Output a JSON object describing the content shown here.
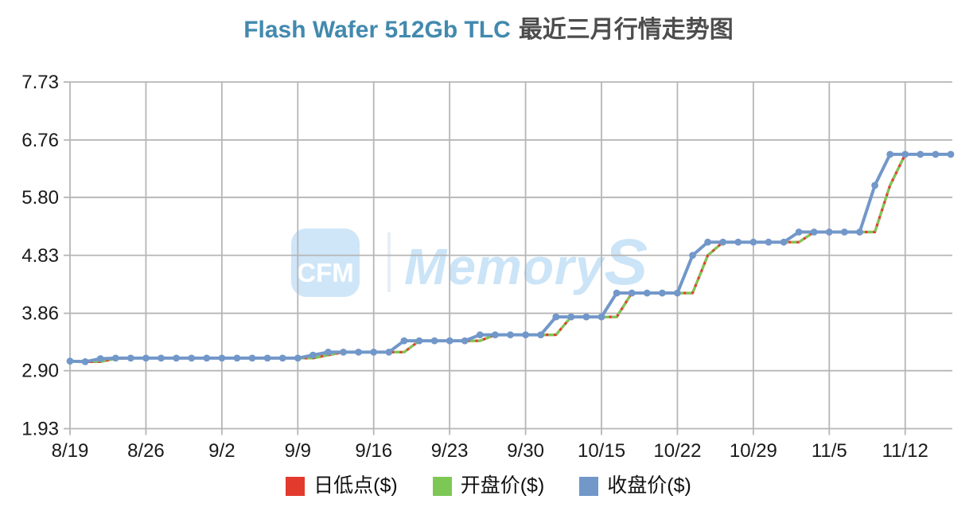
{
  "title": {
    "en": "Flash Wafer 512Gb TLC",
    "zh": "最近三月行情走势图"
  },
  "watermark": {
    "logo_text": "CFM",
    "brand_text": "MemoryS",
    "box_color": "#cfe6f8",
    "text_color": "#cbe4f7",
    "divider_color": "#e7eef5"
  },
  "colors": {
    "title_en": "#4289ae",
    "title_zh": "#4d4d4d",
    "grid": "#b6b6b6",
    "axis_text": "#1a1a1a",
    "low": "#e23b2e",
    "open": "#7dc855",
    "close": "#7297c9"
  },
  "chart_data": {
    "type": "line",
    "title": "Flash Wafer 512Gb TLC 最近三月行情走势图",
    "xlabel": "",
    "ylabel": "",
    "grid": true,
    "legend_position": "bottom",
    "y_ticks": [
      7.73,
      6.76,
      5.8,
      4.83,
      3.86,
      2.9,
      1.93
    ],
    "ylim": [
      1.93,
      7.73
    ],
    "x_tick_labels": [
      "8/19",
      "8/26",
      "9/2",
      "9/9",
      "9/16",
      "9/23",
      "9/30",
      "10/15",
      "10/22",
      "10/29",
      "11/5",
      "11/12"
    ],
    "x_tick_interval_points": 5,
    "n_points": 59,
    "series": [
      {
        "name": "日低点($)",
        "color": "#e23b2e",
        "style": "solid",
        "markers": false,
        "values": [
          3.06,
          3.05,
          3.05,
          3.1,
          3.11,
          3.11,
          3.11,
          3.11,
          3.11,
          3.11,
          3.11,
          3.11,
          3.11,
          3.11,
          3.11,
          3.11,
          3.11,
          3.16,
          3.21,
          3.21,
          3.21,
          3.21,
          3.21,
          3.4,
          3.4,
          3.4,
          3.4,
          3.4,
          3.5,
          3.5,
          3.5,
          3.5,
          3.5,
          3.8,
          3.8,
          3.8,
          3.8,
          4.2,
          4.2,
          4.2,
          4.2,
          4.2,
          4.83,
          5.05,
          5.05,
          5.05,
          5.05,
          5.05,
          5.05,
          5.22,
          5.22,
          5.22,
          5.22,
          5.22,
          6.0,
          6.52,
          6.52,
          6.52,
          6.52
        ]
      },
      {
        "name": "开盘价($)",
        "color": "#7dc855",
        "style": "dashed",
        "markers": false,
        "values": [
          3.06,
          3.06,
          3.05,
          3.1,
          3.11,
          3.11,
          3.11,
          3.11,
          3.11,
          3.11,
          3.11,
          3.11,
          3.11,
          3.11,
          3.11,
          3.11,
          3.11,
          3.16,
          3.21,
          3.21,
          3.21,
          3.21,
          3.21,
          3.4,
          3.4,
          3.4,
          3.4,
          3.4,
          3.5,
          3.5,
          3.5,
          3.5,
          3.5,
          3.8,
          3.8,
          3.8,
          3.8,
          4.2,
          4.2,
          4.2,
          4.2,
          4.2,
          4.83,
          5.05,
          5.05,
          5.05,
          5.05,
          5.05,
          5.05,
          5.22,
          5.22,
          5.22,
          5.22,
          5.22,
          6.0,
          6.52,
          6.52,
          6.52,
          6.52
        ]
      },
      {
        "name": "收盘价($)",
        "color": "#7297c9",
        "style": "solid",
        "markers": true,
        "values": [
          3.06,
          3.05,
          3.1,
          3.11,
          3.11,
          3.11,
          3.11,
          3.11,
          3.11,
          3.11,
          3.11,
          3.11,
          3.11,
          3.11,
          3.11,
          3.11,
          3.16,
          3.21,
          3.21,
          3.21,
          3.21,
          3.21,
          3.4,
          3.4,
          3.4,
          3.4,
          3.4,
          3.5,
          3.5,
          3.5,
          3.5,
          3.5,
          3.8,
          3.8,
          3.8,
          3.8,
          4.2,
          4.2,
          4.2,
          4.2,
          4.2,
          4.83,
          5.05,
          5.05,
          5.05,
          5.05,
          5.05,
          5.05,
          5.22,
          5.22,
          5.22,
          5.22,
          5.22,
          6.0,
          6.52,
          6.52,
          6.52,
          6.52,
          6.52
        ]
      }
    ]
  }
}
